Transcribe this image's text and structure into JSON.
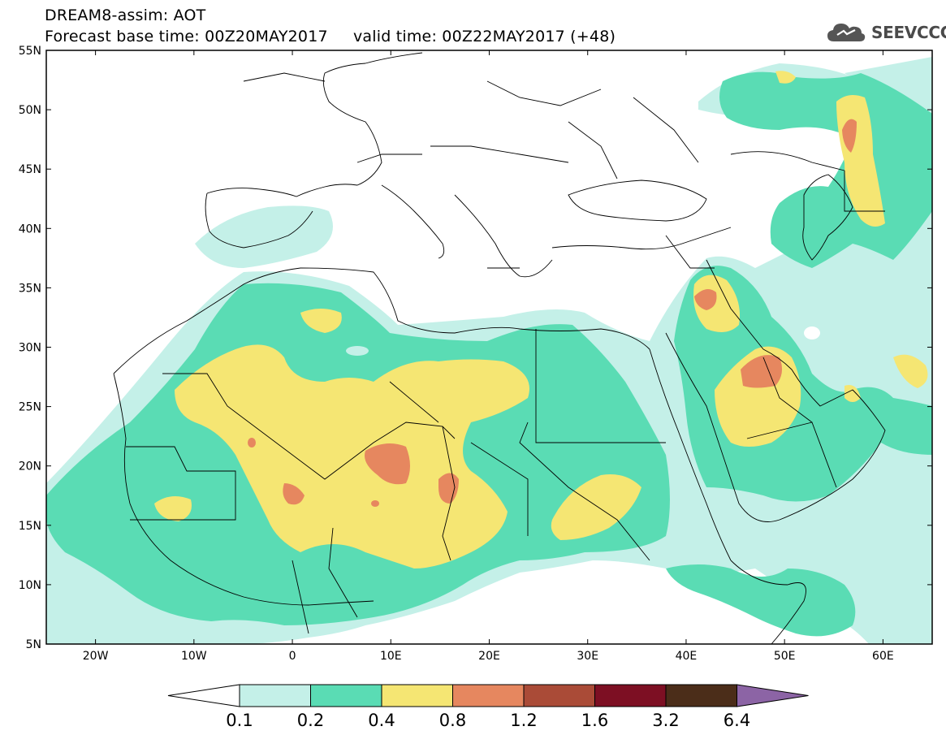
{
  "header": {
    "line1": "DREAM8-assim: AOT",
    "line2": "Forecast base time: 00Z20MAY2017     valid time: 00Z22MAY2017 (+48)"
  },
  "logo": {
    "text": "SEEVCCC",
    "icon": "cloud-icon"
  },
  "map": {
    "lat_range": [
      5,
      55
    ],
    "lon_range": [
      -25,
      65
    ],
    "lat_labels": [
      "55N",
      "50N",
      "45N",
      "40N",
      "35N",
      "30N",
      "25N",
      "20N",
      "15N",
      "10N",
      "5N"
    ],
    "lat_values": [
      55,
      50,
      45,
      40,
      35,
      30,
      25,
      20,
      15,
      10,
      5
    ],
    "lon_labels": [
      "20W",
      "10W",
      "0",
      "10E",
      "20E",
      "30E",
      "40E",
      "50E",
      "60E"
    ],
    "lon_values": [
      -20,
      -10,
      0,
      10,
      20,
      30,
      40,
      50,
      60
    ]
  },
  "legend": {
    "labels": [
      "0.1",
      "0.2",
      "0.4",
      "0.8",
      "1.2",
      "1.6",
      "3.2",
      "6.4"
    ],
    "colors": [
      "#c4f0e8",
      "#5adcb4",
      "#f5e673",
      "#e6875f",
      "#aa4b37",
      "#7d0f23",
      "#4b2d19",
      "#8c64a5"
    ]
  },
  "colors": {
    "c1": "#c4f0e8",
    "c2": "#5adcb4",
    "c3": "#f5e673",
    "c4": "#e6875f"
  }
}
